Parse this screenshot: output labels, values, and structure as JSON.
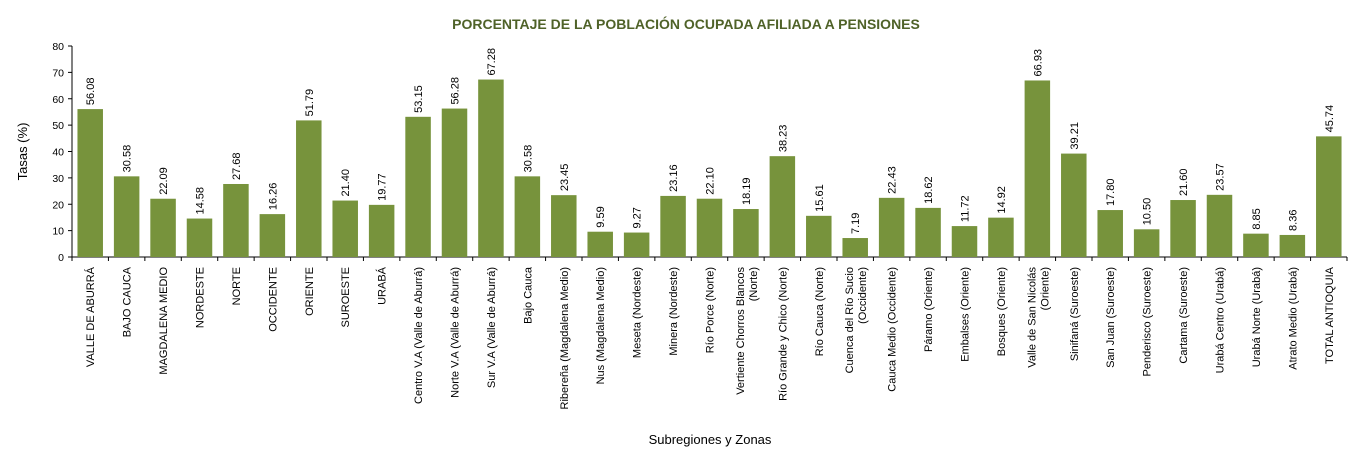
{
  "chart_data": {
    "type": "bar",
    "title": "PORCENTAJE DE LA POBLACIÓN OCUPADA AFILIADA A PENSIONES",
    "xlabel": "Subregiones y Zonas",
    "ylabel": "Tasas (%)",
    "ylim": [
      0,
      80
    ],
    "yticks": [
      0,
      10,
      20,
      30,
      40,
      50,
      60,
      70,
      80
    ],
    "grid": false,
    "legend": "none",
    "bar_color": "#77933c",
    "title_color": "#4f6228",
    "categories": [
      [
        "VALLE DE ABURRÁ"
      ],
      [
        "BAJO CAUCA"
      ],
      [
        "MAGDALENA MEDIO"
      ],
      [
        "NORDESTE"
      ],
      [
        "NORTE"
      ],
      [
        "OCCIDENTE"
      ],
      [
        "ORIENTE"
      ],
      [
        "SUROESTE"
      ],
      [
        "URABÁ"
      ],
      [
        "Centro V.A (Valle de Aburrá)"
      ],
      [
        "Norte V.A (Valle de Aburrá)"
      ],
      [
        "Sur V.A (Valle de Aburrá)"
      ],
      [
        "Bajo Cauca"
      ],
      [
        "Ribereña (Magdalena Medio)"
      ],
      [
        "Nus (Magdalena Medio)"
      ],
      [
        "Meseta (Nordeste)"
      ],
      [
        "Minera (Nordeste)"
      ],
      [
        "Río Porce (Norte)"
      ],
      [
        "Vertiente Chorros Blancos",
        "(Norte)"
      ],
      [
        "Río Grande y Chico (Norte)"
      ],
      [
        "Río Cauca (Norte)"
      ],
      [
        "Cuenca del Río Sucio",
        "(Occidente)"
      ],
      [
        "Cauca Medio (Occidente)"
      ],
      [
        "Páramo (Oriente)"
      ],
      [
        "Embalses (Oriente)"
      ],
      [
        "Bosques (Oriente)"
      ],
      [
        "Valle de San Nicolás",
        "(Oriente)"
      ],
      [
        "Sinifaná (Suroeste)"
      ],
      [
        "San Juan (Suroeste)"
      ],
      [
        "Penderisco (Suroeste)"
      ],
      [
        "Cartama (Suroeste)"
      ],
      [
        "Urabá Centro (Urabá)"
      ],
      [
        "Urabá Norte (Urabá)"
      ],
      [
        "Atrato Medio (Urabá)"
      ],
      [
        "TOTAL ANTIOQUIA"
      ]
    ],
    "values": [
      56.08,
      30.58,
      22.09,
      14.58,
      27.68,
      16.26,
      51.79,
      21.4,
      19.77,
      53.15,
      56.28,
      67.28,
      30.58,
      23.45,
      9.59,
      9.27,
      23.16,
      22.1,
      18.19,
      38.23,
      15.61,
      7.19,
      22.43,
      18.62,
      11.72,
      14.92,
      66.93,
      39.21,
      17.8,
      10.5,
      21.6,
      23.57,
      8.85,
      8.36,
      45.74
    ],
    "data_labels": [
      "56.08",
      "30.58",
      "22.09",
      "14.58",
      "27.68",
      "16.26",
      "51.79",
      "21.40",
      "19.77",
      "53.15",
      "56.28",
      "67.28",
      "30.58",
      "23.45",
      "9.59",
      "9.27",
      "23.16",
      "22.10",
      "18.19",
      "38.23",
      "15.61",
      "7.19",
      "22.43",
      "18.62",
      "11.72",
      "14.92",
      "66.93",
      "39.21",
      "17.80",
      "10.50",
      "21.60",
      "23.57",
      "8.85",
      "8.36",
      "45.74"
    ]
  }
}
